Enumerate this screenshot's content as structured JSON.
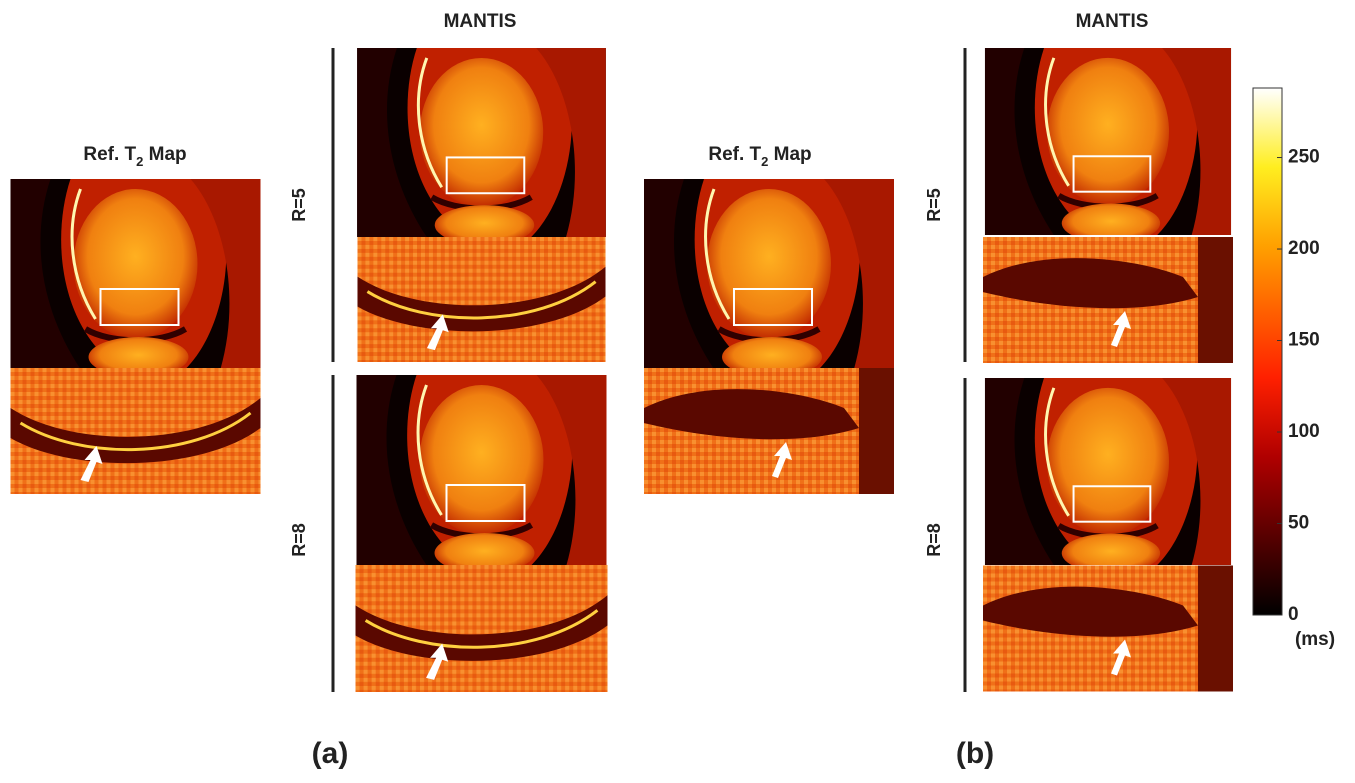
{
  "panels": [
    {
      "label": "(a)",
      "reference_title": [
        "Ref. T",
        "2",
        " Map"
      ],
      "method_title": "MANTIS",
      "rows": [
        "R=5",
        "R=8"
      ]
    },
    {
      "label": "(b)",
      "reference_title": [
        "Ref. T",
        "2",
        " Map"
      ],
      "method_title": "MANTIS",
      "rows": [
        "R=5",
        "R=8"
      ]
    }
  ],
  "colorbar": {
    "lim": [
      0,
      288
    ],
    "ticks": [
      0,
      50,
      100,
      150,
      200,
      250
    ],
    "unit": "(ms)"
  }
}
